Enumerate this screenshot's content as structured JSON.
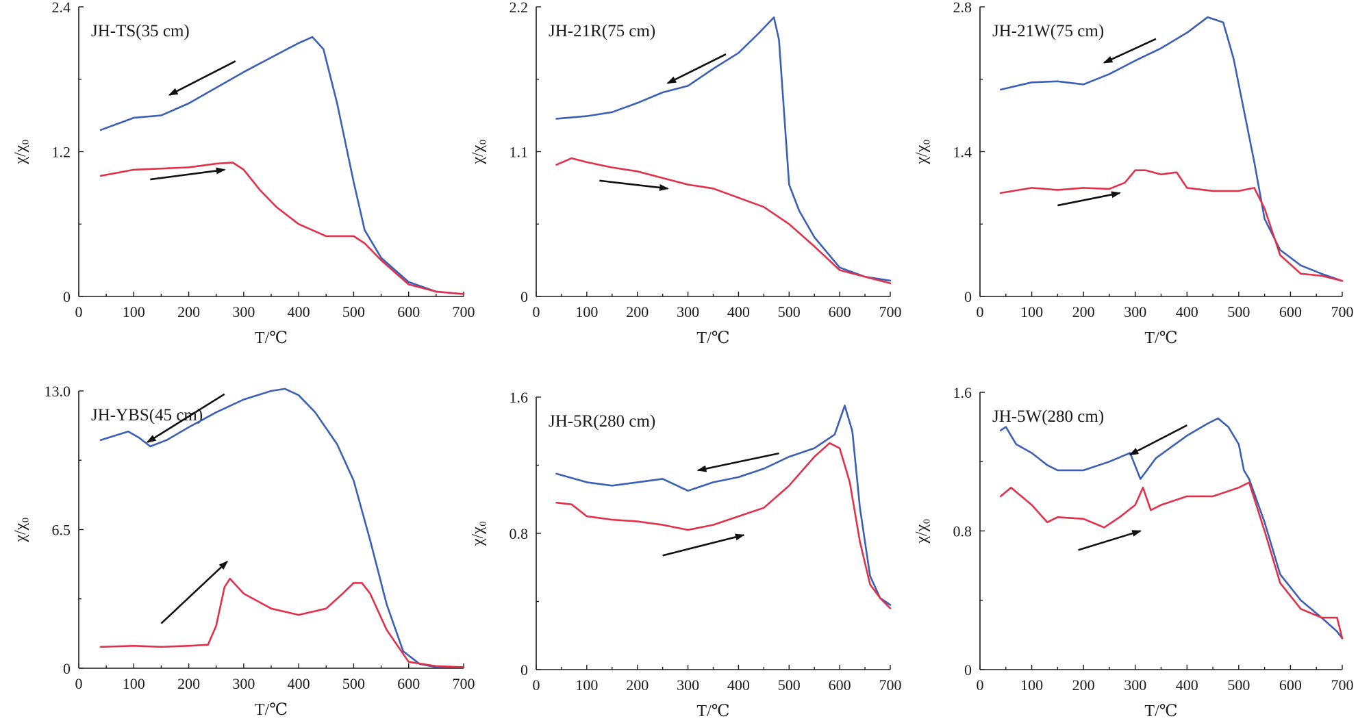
{
  "chart_data": [
    {
      "type": "line",
      "title": "JH-TS(35 cm)",
      "xlabel": "T/℃",
      "ylabel": "χ/χ₀",
      "xlim": [
        0,
        700
      ],
      "ylim": [
        0,
        2.4
      ],
      "xticks": [
        "0",
        "100",
        "200",
        "300",
        "400",
        "500",
        "600",
        "700"
      ],
      "yticks": [
        "0",
        "1.2",
        "2.4"
      ],
      "series": [
        {
          "color": "#3a5fb4",
          "x": [
            40,
            100,
            150,
            200,
            250,
            300,
            350,
            400,
            425,
            445,
            470,
            500,
            520,
            550,
            600,
            650,
            700
          ],
          "y": [
            1.38,
            1.48,
            1.5,
            1.6,
            1.73,
            1.86,
            1.98,
            2.1,
            2.15,
            2.05,
            1.6,
            0.95,
            0.55,
            0.32,
            0.12,
            0.04,
            0.02
          ]
        },
        {
          "color": "#e0304a",
          "x": [
            40,
            100,
            150,
            200,
            250,
            280,
            300,
            330,
            360,
            400,
            450,
            480,
            500,
            520,
            550,
            600,
            650,
            700
          ],
          "y": [
            1.0,
            1.05,
            1.06,
            1.07,
            1.1,
            1.11,
            1.05,
            0.88,
            0.74,
            0.6,
            0.5,
            0.5,
            0.5,
            0.44,
            0.3,
            0.1,
            0.04,
            0.02
          ]
        }
      ],
      "arrows": [
        {
          "from": [
            285,
            1.95
          ],
          "to": [
            165,
            1.67
          ]
        },
        {
          "from": [
            130,
            0.97
          ],
          "to": [
            265,
            1.05
          ]
        }
      ]
    },
    {
      "type": "line",
      "title": "JH-21R(75 cm)",
      "xlabel": "T/℃",
      "ylabel": "χ/χ₀",
      "xlim": [
        0,
        700
      ],
      "ylim": [
        0,
        2.2
      ],
      "xticks": [
        "0",
        "100",
        "200",
        "300",
        "400",
        "500",
        "600",
        "700"
      ],
      "yticks": [
        "0",
        "1.1",
        "2.2"
      ],
      "series": [
        {
          "color": "#3a5fb4",
          "x": [
            40,
            100,
            150,
            200,
            250,
            300,
            350,
            400,
            440,
            470,
            480,
            490,
            500,
            520,
            550,
            600,
            650,
            700
          ],
          "y": [
            1.35,
            1.37,
            1.4,
            1.47,
            1.55,
            1.6,
            1.73,
            1.85,
            2.0,
            2.12,
            1.95,
            1.4,
            0.85,
            0.65,
            0.45,
            0.22,
            0.15,
            0.12
          ]
        },
        {
          "color": "#e0304a",
          "x": [
            40,
            70,
            100,
            150,
            200,
            250,
            300,
            350,
            400,
            450,
            500,
            550,
            600,
            650,
            700
          ],
          "y": [
            1.0,
            1.05,
            1.02,
            0.98,
            0.95,
            0.9,
            0.85,
            0.82,
            0.75,
            0.68,
            0.55,
            0.38,
            0.2,
            0.15,
            0.1
          ]
        }
      ],
      "arrows": [
        {
          "from": [
            375,
            1.84
          ],
          "to": [
            260,
            1.62
          ]
        },
        {
          "from": [
            125,
            0.88
          ],
          "to": [
            260,
            0.82
          ]
        }
      ]
    },
    {
      "type": "line",
      "title": "JH-21W(75 cm)",
      "xlabel": "T/℃",
      "ylabel": "χ/χ₀",
      "xlim": [
        0,
        700
      ],
      "ylim": [
        0,
        2.8
      ],
      "xticks": [
        "0",
        "100",
        "200",
        "300",
        "400",
        "500",
        "600",
        "700"
      ],
      "yticks": [
        "0",
        "1.4",
        "2.8"
      ],
      "series": [
        {
          "color": "#3a5fb4",
          "x": [
            40,
            100,
            150,
            200,
            250,
            300,
            350,
            400,
            440,
            470,
            490,
            510,
            530,
            550,
            580,
            620,
            660,
            700
          ],
          "y": [
            2.0,
            2.07,
            2.08,
            2.05,
            2.15,
            2.28,
            2.4,
            2.55,
            2.7,
            2.65,
            2.3,
            1.8,
            1.3,
            0.75,
            0.45,
            0.3,
            0.22,
            0.15
          ]
        },
        {
          "color": "#e0304a",
          "x": [
            40,
            100,
            150,
            200,
            250,
            280,
            300,
            320,
            350,
            380,
            400,
            450,
            500,
            530,
            550,
            580,
            620,
            660,
            700
          ],
          "y": [
            1.0,
            1.05,
            1.03,
            1.05,
            1.04,
            1.1,
            1.22,
            1.22,
            1.18,
            1.2,
            1.05,
            1.02,
            1.02,
            1.05,
            0.85,
            0.4,
            0.22,
            0.2,
            0.15
          ]
        }
      ],
      "arrows": [
        {
          "from": [
            340,
            2.49
          ],
          "to": [
            240,
            2.26
          ]
        },
        {
          "from": [
            150,
            0.88
          ],
          "to": [
            270,
            1.0
          ]
        }
      ]
    },
    {
      "type": "line",
      "title": "JH-YBS(45 cm)",
      "xlabel": "T/℃",
      "ylabel": "χ/χ₀",
      "xlim": [
        0,
        700
      ],
      "ylim": [
        0,
        13.0
      ],
      "xticks": [
        "0",
        "100",
        "200",
        "300",
        "400",
        "500",
        "600",
        "700"
      ],
      "yticks": [
        "0",
        "6.5",
        "13.0"
      ],
      "series": [
        {
          "color": "#3a5fb4",
          "x": [
            40,
            90,
            110,
            130,
            160,
            200,
            250,
            300,
            350,
            375,
            400,
            430,
            470,
            500,
            530,
            560,
            590,
            620,
            650,
            700
          ],
          "y": [
            10.7,
            11.1,
            10.8,
            10.4,
            10.7,
            11.3,
            12.0,
            12.6,
            13.0,
            13.1,
            12.8,
            12.0,
            10.5,
            8.8,
            6.0,
            3.0,
            0.8,
            0.2,
            0.05,
            0.05
          ]
        },
        {
          "color": "#e0304a",
          "x": [
            40,
            100,
            150,
            200,
            235,
            250,
            265,
            275,
            300,
            350,
            400,
            450,
            480,
            500,
            515,
            530,
            560,
            600,
            650,
            700
          ],
          "y": [
            1.0,
            1.05,
            1.0,
            1.05,
            1.1,
            2.0,
            3.8,
            4.2,
            3.5,
            2.8,
            2.5,
            2.8,
            3.5,
            4.0,
            4.0,
            3.5,
            1.8,
            0.3,
            0.1,
            0.05
          ]
        }
      ],
      "arrows": [
        {
          "from": [
            265,
            12.85
          ],
          "to": [
            125,
            10.6
          ]
        },
        {
          "from": [
            150,
            2.1
          ],
          "to": [
            270,
            5.0
          ]
        }
      ]
    },
    {
      "type": "line",
      "title": "JH-5R(280 cm)",
      "xlabel": "T/℃",
      "ylabel": "χ/χ₀",
      "xlim": [
        0,
        700
      ],
      "ylim": [
        0,
        1.6
      ],
      "xticks": [
        "0",
        "100",
        "200",
        "300",
        "400",
        "500",
        "600",
        "700"
      ],
      "yticks": [
        "0",
        "0.8",
        "1.6"
      ],
      "series": [
        {
          "color": "#3a5fb4",
          "x": [
            40,
            100,
            150,
            200,
            250,
            300,
            350,
            400,
            450,
            500,
            550,
            590,
            610,
            625,
            640,
            660,
            680,
            700
          ],
          "y": [
            1.15,
            1.1,
            1.08,
            1.1,
            1.12,
            1.05,
            1.1,
            1.13,
            1.18,
            1.25,
            1.3,
            1.38,
            1.55,
            1.4,
            0.95,
            0.55,
            0.42,
            0.38
          ]
        },
        {
          "color": "#e0304a",
          "x": [
            40,
            70,
            100,
            150,
            200,
            250,
            300,
            350,
            400,
            450,
            500,
            550,
            580,
            600,
            620,
            640,
            660,
            680,
            700
          ],
          "y": [
            0.98,
            0.97,
            0.9,
            0.88,
            0.87,
            0.85,
            0.82,
            0.85,
            0.9,
            0.95,
            1.08,
            1.25,
            1.33,
            1.3,
            1.1,
            0.75,
            0.5,
            0.42,
            0.36
          ]
        }
      ],
      "arrows": [
        {
          "from": [
            480,
            1.27
          ],
          "to": [
            320,
            1.17
          ]
        },
        {
          "from": [
            250,
            0.67
          ],
          "to": [
            410,
            0.79
          ]
        }
      ]
    },
    {
      "type": "line",
      "title": "JH-5W(280 cm)",
      "xlabel": "T/℃",
      "ylabel": "χ/χ₀",
      "xlim": [
        0,
        700
      ],
      "ylim": [
        0,
        1.6
      ],
      "xticks": [
        "0",
        "100",
        "200",
        "300",
        "400",
        "500",
        "600",
        "700"
      ],
      "yticks": [
        "0",
        "0.8",
        "1.6"
      ],
      "series": [
        {
          "color": "#3a5fb4",
          "x": [
            40,
            50,
            70,
            100,
            130,
            150,
            200,
            250,
            290,
            310,
            340,
            400,
            440,
            460,
            480,
            500,
            510,
            520,
            550,
            580,
            620,
            660,
            690,
            700
          ],
          "y": [
            1.38,
            1.4,
            1.3,
            1.25,
            1.18,
            1.15,
            1.15,
            1.2,
            1.25,
            1.1,
            1.22,
            1.35,
            1.42,
            1.45,
            1.4,
            1.3,
            1.15,
            1.1,
            0.85,
            0.55,
            0.4,
            0.3,
            0.22,
            0.18
          ]
        },
        {
          "color": "#e0304a",
          "x": [
            40,
            60,
            80,
            100,
            130,
            150,
            200,
            240,
            270,
            300,
            315,
            330,
            350,
            400,
            450,
            500,
            520,
            550,
            580,
            620,
            660,
            690,
            700
          ],
          "y": [
            1.0,
            1.05,
            1.0,
            0.95,
            0.85,
            0.88,
            0.87,
            0.82,
            0.88,
            0.95,
            1.05,
            0.92,
            0.95,
            1.0,
            1.0,
            1.05,
            1.08,
            0.8,
            0.5,
            0.35,
            0.3,
            0.3,
            0.18
          ]
        }
      ],
      "arrows": [
        {
          "from": [
            400,
            1.41
          ],
          "to": [
            290,
            1.24
          ]
        },
        {
          "from": [
            190,
            0.69
          ],
          "to": [
            310,
            0.8
          ]
        }
      ]
    }
  ]
}
